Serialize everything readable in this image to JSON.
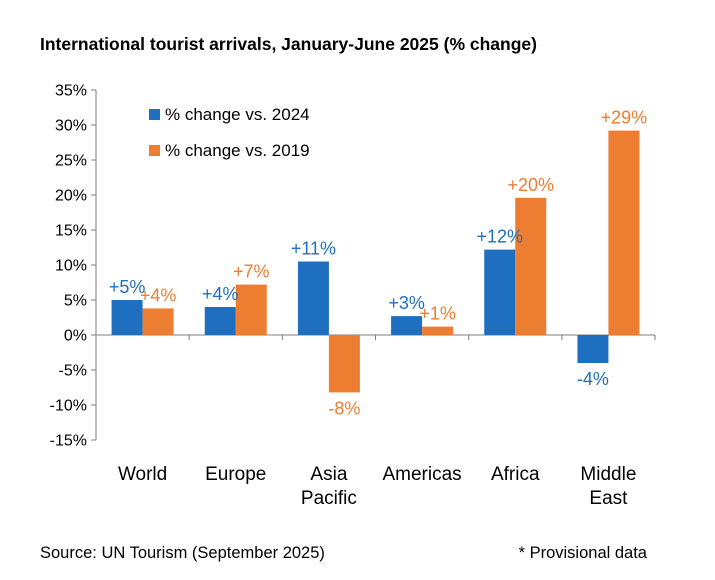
{
  "title": "International tourist arrivals, January-June 2025 (% change)",
  "source": "Source: UN Tourism (September 2025)",
  "note": "* Provisional data",
  "chart_data": {
    "type": "bar",
    "title": "International tourist arrivals, January-June 2025 (% change)",
    "xlabel": "",
    "ylabel": "",
    "ylim": [
      -15,
      35
    ],
    "yticks": [
      -15,
      -10,
      -5,
      0,
      5,
      10,
      15,
      20,
      25,
      30,
      35
    ],
    "ytick_labels": [
      "-15%",
      "-10%",
      "-5%",
      "0%",
      "5%",
      "10%",
      "15%",
      "20%",
      "25%",
      "30%",
      "35%"
    ],
    "categories": [
      [
        "World"
      ],
      [
        "Europe"
      ],
      [
        "Asia",
        "Pacific"
      ],
      [
        "Americas"
      ],
      [
        "Africa"
      ],
      [
        "Middle",
        "East"
      ]
    ],
    "grid": false,
    "legend_position": "top-left",
    "series": [
      {
        "name": "% change vs. 2024",
        "color": "#1f6fc0",
        "values": [
          5,
          4,
          10.5,
          2.7,
          12.2,
          -4
        ],
        "labels": [
          "+5%",
          "+4%",
          "+11%",
          "+3%",
          "+12%",
          "-4%"
        ]
      },
      {
        "name": "% change vs. 2019",
        "color": "#ed7d31",
        "values": [
          3.8,
          7.2,
          -8.2,
          1.2,
          19.6,
          29.2
        ],
        "labels": [
          "+4%",
          "+7%",
          "-8%",
          "+1%",
          "+20%",
          "+29%"
        ]
      }
    ]
  }
}
